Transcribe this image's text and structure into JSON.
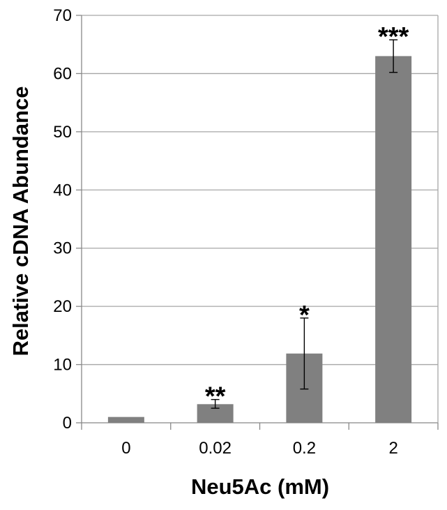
{
  "chart_data": {
    "type": "bar",
    "title": "",
    "xlabel": "Neu5Ac (mM)",
    "ylabel": "Relative cDNA Abundance",
    "categories": [
      "0",
      "0.02",
      "0.2",
      "2"
    ],
    "series": [
      {
        "values": [
          1.0,
          3.2,
          11.9,
          63.0
        ],
        "error_low": [
          0.0,
          0.7,
          6.1,
          2.8
        ],
        "error_high": [
          0.0,
          0.8,
          6.1,
          2.8
        ],
        "significance": [
          "",
          "**",
          "*",
          "***"
        ],
        "color": "#808080"
      }
    ],
    "ylim": [
      0,
      70
    ],
    "yticks": [
      0,
      10,
      20,
      30,
      40,
      50,
      60,
      70
    ],
    "grid": true,
    "legend": "none"
  }
}
